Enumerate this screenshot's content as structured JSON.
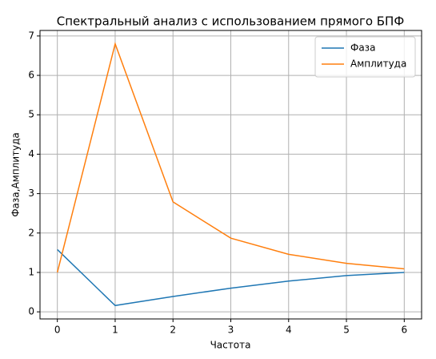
{
  "chart_data": {
    "type": "line",
    "title": "Спектральный анализ с использованием  прямого БПФ",
    "x_label": "Частота",
    "y_label": "Фаза,Амплитуда",
    "x": [
      0,
      1,
      2,
      3,
      4,
      5,
      6
    ],
    "series": [
      {
        "name": "Фаза",
        "color": "#1f77b4",
        "values": [
          1.58,
          0.16,
          0.39,
          0.6,
          0.78,
          0.92,
          1.0
        ]
      },
      {
        "name": "Амплитуда",
        "color": "#ff7f0e",
        "values": [
          1.0,
          6.8,
          2.79,
          1.87,
          1.46,
          1.23,
          1.09
        ]
      }
    ],
    "xlim": [
      -0.3,
      6.3
    ],
    "xticks": [
      0,
      1,
      2,
      3,
      4,
      5,
      6
    ],
    "ylim": [
      -0.18,
      7.14
    ],
    "yticks": [
      0,
      1,
      2,
      3,
      4,
      5,
      6,
      7
    ],
    "grid": true,
    "legend": "upper right"
  }
}
